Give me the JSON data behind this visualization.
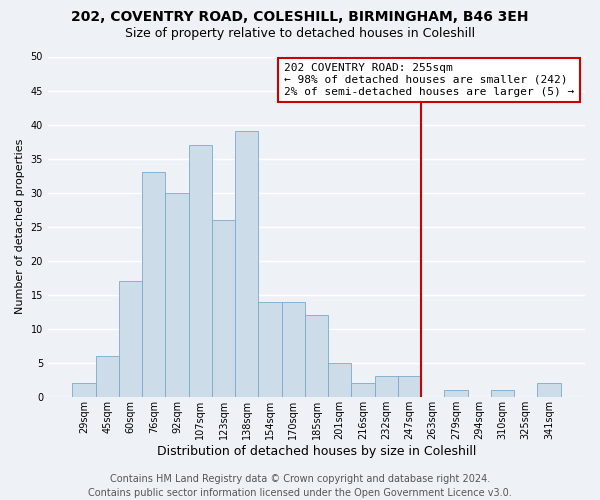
{
  "title": "202, COVENTRY ROAD, COLESHILL, BIRMINGHAM, B46 3EH",
  "subtitle": "Size of property relative to detached houses in Coleshill",
  "xlabel": "Distribution of detached houses by size in Coleshill",
  "ylabel": "Number of detached properties",
  "footer_line1": "Contains HM Land Registry data © Crown copyright and database right 2024.",
  "footer_line2": "Contains public sector information licensed under the Open Government Licence v3.0.",
  "bin_labels": [
    "29sqm",
    "45sqm",
    "60sqm",
    "76sqm",
    "92sqm",
    "107sqm",
    "123sqm",
    "138sqm",
    "154sqm",
    "170sqm",
    "185sqm",
    "201sqm",
    "216sqm",
    "232sqm",
    "247sqm",
    "263sqm",
    "279sqm",
    "294sqm",
    "310sqm",
    "325sqm",
    "341sqm"
  ],
  "bar_heights": [
    2,
    6,
    17,
    33,
    30,
    37,
    26,
    39,
    14,
    14,
    12,
    5,
    2,
    3,
    3,
    0,
    1,
    0,
    1,
    0,
    2
  ],
  "bar_color": "#ccdce8",
  "bar_edgecolor": "#7aaac8",
  "ylim": [
    0,
    50
  ],
  "yticks": [
    0,
    5,
    10,
    15,
    20,
    25,
    30,
    35,
    40,
    45,
    50
  ],
  "annotation_title": "202 COVENTRY ROAD: 255sqm",
  "annotation_line1": "← 98% of detached houses are smaller (242)",
  "annotation_line2": "2% of semi-detached houses are larger (5) →",
  "vline_color": "#cc0000",
  "annotation_box_edgecolor": "#cc0000",
  "fig_bg_color": "#eef2f7",
  "plot_bg_color": "#eef2f7",
  "grid_color": "#ffffff",
  "title_fontsize": 10,
  "subtitle_fontsize": 9,
  "xlabel_fontsize": 9,
  "ylabel_fontsize": 8,
  "tick_fontsize": 7,
  "annotation_fontsize": 8,
  "footer_fontsize": 7
}
